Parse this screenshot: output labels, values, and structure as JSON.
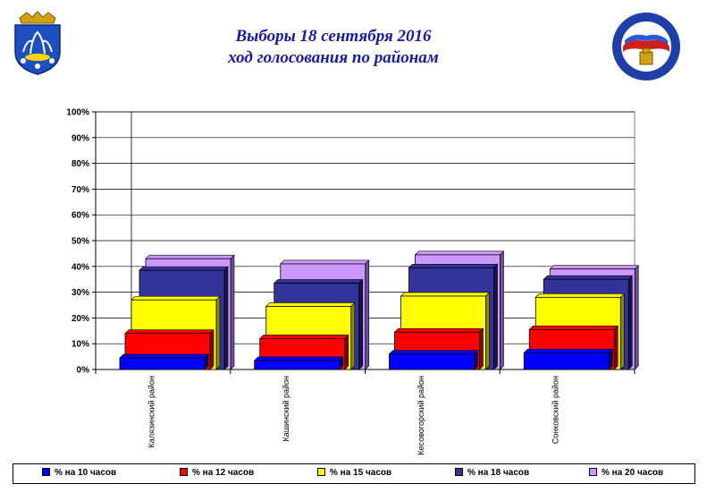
{
  "title": {
    "line1": "Выборы 18 сентября 2016",
    "line2": "ход голосования по районам"
  },
  "colors": {
    "title": "#1a1aa6",
    "emblem_left_field": "#1e4fc0",
    "emblem_right_border": "#1f3fa8"
  },
  "chart_data": {
    "type": "bar",
    "categories": [
      "Калязинский район",
      "Кашинский район",
      "Кесовогорский район",
      "Сонковский район"
    ],
    "series": [
      {
        "name": "% на 10 часов",
        "color": "#0000ff",
        "values": [
          4.5,
          3.5,
          6.0,
          6.5
        ]
      },
      {
        "name": "% на 12 часов",
        "color": "#ff0000",
        "values": [
          14.0,
          12.0,
          14.5,
          15.5
        ]
      },
      {
        "name": "% на 15 часов",
        "color": "#ffff00",
        "values": [
          27.0,
          24.5,
          28.5,
          28.0
        ]
      },
      {
        "name": "% на 18 часов",
        "color": "#333399",
        "values": [
          38.5,
          33.5,
          39.5,
          35.0
        ]
      },
      {
        "name": "% на 20 часов",
        "color": "#cc99ff",
        "values": [
          43.0,
          41.0,
          44.5,
          39.0
        ]
      }
    ],
    "ylim": [
      0,
      100
    ],
    "yticks": [
      "0%",
      "10%",
      "20%",
      "30%",
      "40%",
      "50%",
      "60%",
      "70%",
      "80%",
      "90%",
      "100%"
    ],
    "grid": true,
    "legend_position": "bottom"
  }
}
